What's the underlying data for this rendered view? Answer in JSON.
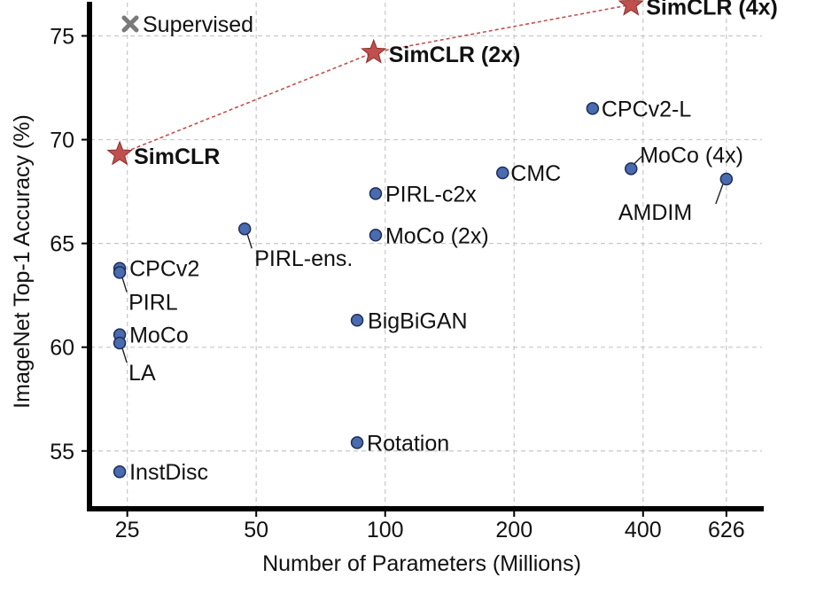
{
  "chart_data": {
    "type": "scatter",
    "title": "",
    "xlabel": "Number of Parameters (Millions)",
    "ylabel": "ImageNet Top-1 Accuracy (%)",
    "x_scale": "log",
    "x_ticks": [
      25,
      50,
      100,
      200,
      400,
      626
    ],
    "x_tick_labels": [
      "25",
      "50",
      "100",
      "200",
      "400",
      "626"
    ],
    "y_ticks": [
      55,
      60,
      65,
      70,
      75
    ],
    "y_tick_labels": [
      "55",
      "60",
      "65",
      "70",
      "75"
    ],
    "ylim": [
      52.3,
      76.6
    ],
    "grid": true,
    "legend": {
      "position": "top-left",
      "entries": [
        {
          "label": "Supervised",
          "marker": "x",
          "color": "#7a7a7a"
        }
      ]
    },
    "simclr_color": "#c0504d",
    "method_color": "#4a6bb0",
    "simclr_series": [
      {
        "label": "SimCLR",
        "x": 24,
        "y": 69.3
      },
      {
        "label": "SimCLR (2x)",
        "x": 94,
        "y": 74.2
      },
      {
        "label": "SimCLR (4x)",
        "x": 375,
        "y": 76.5
      }
    ],
    "methods": [
      {
        "label": "CPCv2-L",
        "x": 305,
        "y": 71.5
      },
      {
        "label": "MoCo (4x)",
        "x": 375,
        "y": 68.6
      },
      {
        "label": "AMDIM",
        "x": 626,
        "y": 68.1
      },
      {
        "label": "CMC",
        "x": 188,
        "y": 68.4
      },
      {
        "label": "PIRL-c2x",
        "x": 95,
        "y": 67.4
      },
      {
        "label": "MoCo (2x)",
        "x": 95,
        "y": 65.4
      },
      {
        "label": "PIRL-ens.",
        "x": 47,
        "y": 65.7
      },
      {
        "label": "CPCv2",
        "x": 24,
        "y": 63.8
      },
      {
        "label": "PIRL",
        "x": 24,
        "y": 63.6
      },
      {
        "label": "BigBiGAN",
        "x": 86,
        "y": 61.3
      },
      {
        "label": "MoCo",
        "x": 24,
        "y": 60.6
      },
      {
        "label": "LA",
        "x": 24,
        "y": 60.2
      },
      {
        "label": "Rotation",
        "x": 86,
        "y": 55.4
      },
      {
        "label": "InstDisc",
        "x": 24,
        "y": 54.0
      }
    ]
  }
}
